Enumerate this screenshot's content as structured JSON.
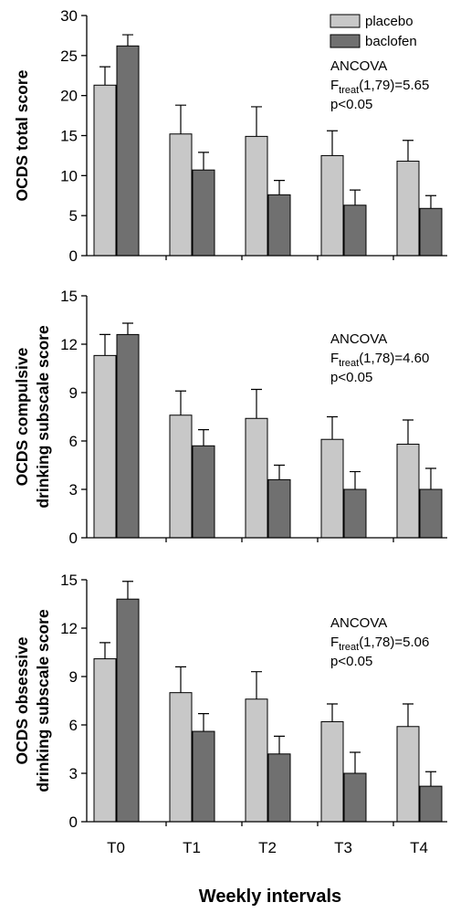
{
  "colors": {
    "placebo": "#c8c8c8",
    "baclofen": "#707070"
  },
  "chart_data": {
    "type": "bar",
    "categories": [
      "T0",
      "T1",
      "T2",
      "T3",
      "T4"
    ],
    "xlabel": "Weekly intervals",
    "legend": {
      "placement": "top-right",
      "entries": [
        "placebo",
        "baclofen"
      ]
    },
    "panels": [
      {
        "ylabel": "OCDS total score",
        "ylim": [
          0,
          30
        ],
        "yticks": [
          "0",
          "5",
          "10",
          "15",
          "20",
          "25",
          "30"
        ],
        "annotation": {
          "test": "ANCOVA",
          "f_base": "F",
          "f_sub": "treat",
          "f_value": "(1,79)=5.65",
          "p": "p<0.05"
        },
        "series": [
          {
            "name": "placebo",
            "values": [
              21.3,
              15.2,
              14.9,
              12.5,
              11.8
            ],
            "errors": [
              2.3,
              3.6,
              3.7,
              3.1,
              2.6
            ]
          },
          {
            "name": "baclofen",
            "values": [
              26.2,
              10.7,
              7.6,
              6.3,
              5.9
            ],
            "errors": [
              1.4,
              2.2,
              1.8,
              1.9,
              1.6
            ]
          }
        ]
      },
      {
        "ylabel": "OCDS compulsive drinking subscale score",
        "ylabel_lines": [
          "OCDS compulsive",
          "drinking subscale score"
        ],
        "ylim": [
          0,
          15
        ],
        "yticks": [
          "0",
          "3",
          "6",
          "9",
          "12",
          "15"
        ],
        "annotation": {
          "test": "ANCOVA",
          "f_base": "F",
          "f_sub": "treat",
          "f_value": "(1,78)=4.60",
          "p": "p<0.05"
        },
        "series": [
          {
            "name": "placebo",
            "values": [
              11.3,
              7.6,
              7.4,
              6.1,
              5.8
            ],
            "errors": [
              1.3,
              1.5,
              1.8,
              1.4,
              1.5
            ]
          },
          {
            "name": "baclofen",
            "values": [
              12.6,
              5.7,
              3.6,
              3.0,
              3.0
            ],
            "errors": [
              0.7,
              1.0,
              0.9,
              1.1,
              1.3
            ]
          }
        ]
      },
      {
        "ylabel": "OCDS obsessive drinking subscale score",
        "ylabel_lines": [
          "OCDS obsessive",
          "drinking subscale score"
        ],
        "ylim": [
          0,
          15
        ],
        "yticks": [
          "0",
          "3",
          "6",
          "9",
          "12",
          "15"
        ],
        "annotation": {
          "test": "ANCOVA",
          "f_base": "F",
          "f_sub": "treat",
          "f_value": "(1,78)=5.06",
          "p": "p<0.05"
        },
        "series": [
          {
            "name": "placebo",
            "values": [
              10.1,
              8.0,
              7.6,
              6.2,
              5.9
            ],
            "errors": [
              1.0,
              1.6,
              1.7,
              1.1,
              1.4
            ]
          },
          {
            "name": "baclofen",
            "values": [
              13.8,
              5.6,
              4.2,
              3.0,
              2.2
            ],
            "errors": [
              1.1,
              1.1,
              1.1,
              1.3,
              0.9
            ]
          }
        ]
      }
    ]
  }
}
